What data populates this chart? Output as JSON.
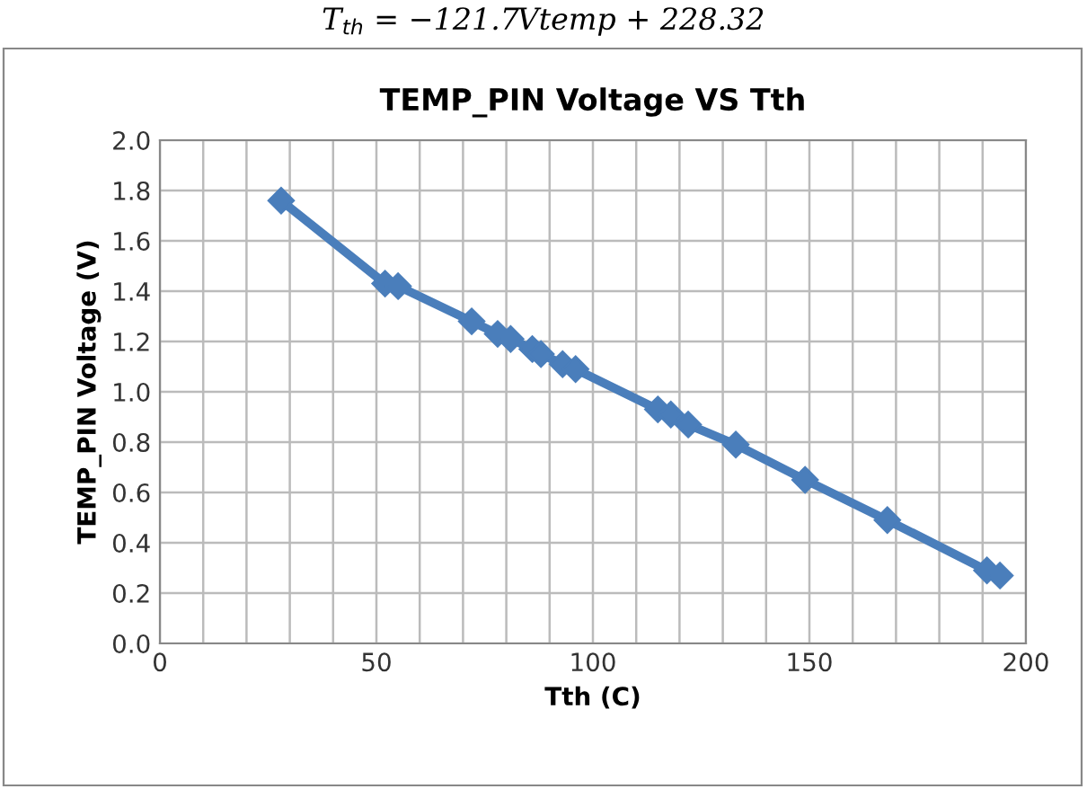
{
  "chart_data": {
    "type": "line",
    "title": "TEMP_PIN Voltage VS Tth",
    "xlabel": "Tth (C)",
    "ylabel": "TEMP_PIN Voltage (V)",
    "annotations": [
      "T$_{th}$ = −121.7Vtemp + 228.32"
    ],
    "x": [
      28,
      52,
      55,
      72,
      78,
      81,
      86,
      88,
      93,
      96,
      115,
      118,
      122,
      133,
      149,
      168,
      191,
      194
    ],
    "series": [
      {
        "color": "#4a7ebb",
        "values": [
          1.76,
          1.43,
          1.42,
          1.28,
          1.23,
          1.21,
          1.17,
          1.15,
          1.11,
          1.09,
          0.93,
          0.91,
          0.87,
          0.79,
          0.65,
          0.49,
          0.29,
          0.27
        ]
      }
    ],
    "xlim": [
      0,
      200
    ],
    "xticks": [
      0,
      50,
      100,
      150,
      200
    ],
    "ylim": [
      0.0,
      2.0
    ],
    "yticks": [
      {
        "value": 0,
        "label": "0.0"
      },
      {
        "value": 0.2,
        "label": "0.2"
      },
      {
        "value": 0.4,
        "label": "0.4"
      },
      {
        "value": 0.6,
        "label": "0.6"
      },
      {
        "value": 0.8,
        "label": "0.8"
      },
      {
        "value": 1.0,
        "label": "1.0"
      },
      {
        "value": 1.2,
        "label": "1.2"
      },
      {
        "value": 1.4,
        "label": "1.4"
      },
      {
        "value": 1.6,
        "label": "1.6"
      },
      {
        "value": 1.8,
        "label": "1.8"
      },
      {
        "value": 2.0,
        "label": "2.0"
      }
    ],
    "grid": true,
    "legend": false,
    "marker": "diamond",
    "line_style": "solid"
  }
}
